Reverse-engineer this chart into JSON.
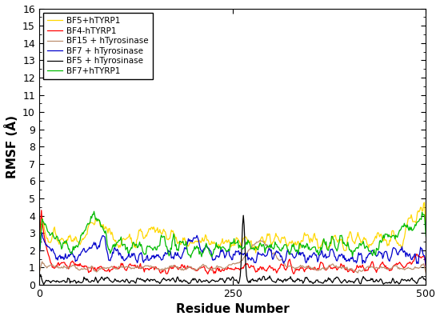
{
  "title": "",
  "xlabel": "Residue Number",
  "ylabel": "RMSF (Å)",
  "xlim": [
    0,
    500
  ],
  "ylim": [
    0,
    16
  ],
  "yticks": [
    0,
    1,
    2,
    3,
    4,
    5,
    6,
    7,
    8,
    9,
    10,
    11,
    12,
    13,
    14,
    15,
    16
  ],
  "xticks": [
    0,
    250,
    500
  ],
  "legend_entries": [
    {
      "label": "BF5+hTYRP1",
      "color": "#FFD700"
    },
    {
      "label": "BF4-hTYRP1",
      "color": "#FF0000"
    },
    {
      "label": "BF15 + hTyrosinase",
      "color": "#BC8F6F"
    },
    {
      "label": "BF7 + hTyrosinase",
      "color": "#0000CC"
    },
    {
      "label": "BF5 + hTyrosinase",
      "color": "#000000"
    },
    {
      "label": "BF7+hTYRP1",
      "color": "#00BB00"
    }
  ],
  "bg_color": "#FFFFFF",
  "n_residues": 500
}
